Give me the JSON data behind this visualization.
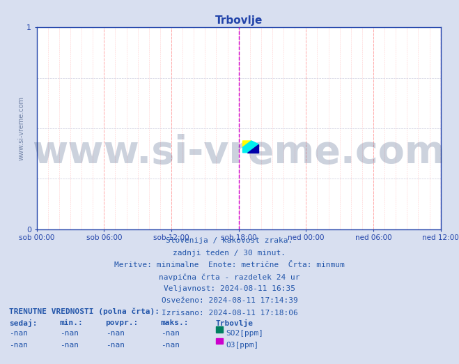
{
  "title": "Trbovlje",
  "title_color": "#2244aa",
  "title_fontsize": 11,
  "bg_color": "#d8dff0",
  "plot_bg_color": "#ffffff",
  "ylim": [
    0,
    1
  ],
  "xtick_labels": [
    "sob 00:00",
    "sob 06:00",
    "sob 12:00",
    "sob 18:00",
    "ned 00:00",
    "ned 06:00",
    "ned 12:00"
  ],
  "xtick_positions": [
    0,
    0.25,
    0.5,
    0.75,
    1.0,
    1.25,
    1.5
  ],
  "grid_color_major": "#ffaaaa",
  "vline_color": "#cc00cc",
  "vline_pos": 0.75,
  "axis_color": "#2244aa",
  "tick_color": "#2244aa",
  "watermark_text": "www.si-vreme.com",
  "watermark_color": "#1a3366",
  "watermark_alpha": 0.22,
  "watermark_fontsize": 40,
  "info_lines": [
    "Slovenija / kakovost zraka.",
    "zadnji teden / 30 minut.",
    "Meritve: minimalne  Enote: metrične  Črta: minmum",
    "navpična črta - razdelek 24 ur",
    "Veljavnost: 2024-08-11 16:35",
    "Osveženo: 2024-08-11 17:14:39",
    "Izrisano: 2024-08-11 17:18:06"
  ],
  "info_color": "#2255aa",
  "info_fontsize": 8,
  "legend_title": "TRENUTNE VREDNOSTI (polna črta):",
  "legend_headers": [
    "sedaj:",
    "min.:",
    "povpr.:",
    "maks.:",
    "Trbovlje"
  ],
  "legend_rows": [
    [
      "-nan",
      "-nan",
      "-nan",
      "-nan",
      "SO2[ppm]",
      "#008060"
    ],
    [
      "-nan",
      "-nan",
      "-nan",
      "-nan",
      "O3[ppm]",
      "#cc00cc"
    ]
  ],
  "legend_color": "#2255aa",
  "legend_fontsize": 8,
  "ylabel_text": "www.si-vreme.com",
  "ylabel_color": "#7788aa",
  "ylabel_fontsize": 7
}
